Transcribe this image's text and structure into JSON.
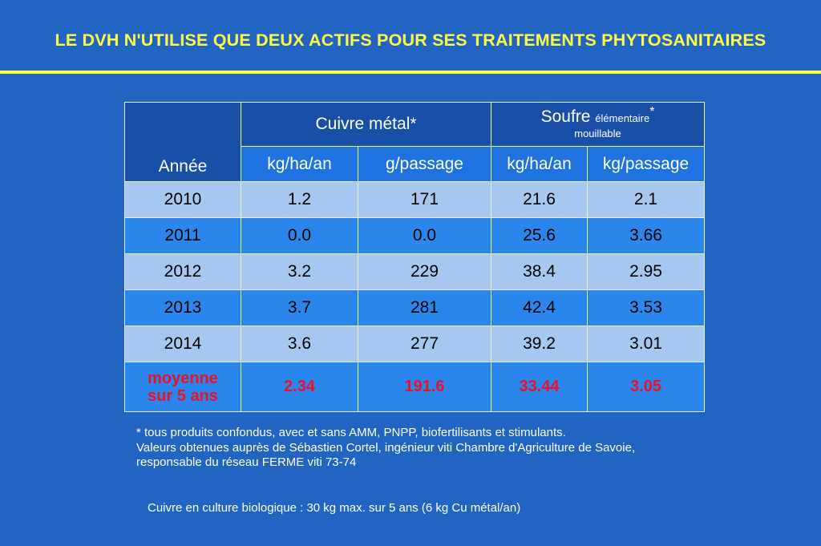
{
  "title": "LE DVH N'UTILISE QUE DEUX ACTIFS POUR SES TRAITEMENTS PHYTOSANITAIRES",
  "colors": {
    "background": "#2164c2",
    "title": "#ffff44",
    "highlight": "#e8102a"
  },
  "table": {
    "year_header": "Année",
    "copper_header": "Cuivre métal*",
    "sulfur_header_main": "Soufre",
    "sulfur_header_small": "élémentaire",
    "sulfur_header_star": "*",
    "sulfur_header_sub": "mouillable",
    "units": [
      "kg/ha/an",
      "g/passage",
      "kg/ha/an",
      "kg/passage"
    ],
    "rows": [
      {
        "year": "2010",
        "values": [
          "1.2",
          "171",
          "21.6",
          "2.1"
        ]
      },
      {
        "year": "2011",
        "values": [
          "0.0",
          "0.0",
          "25.6",
          "3.66"
        ]
      },
      {
        "year": "2012",
        "values": [
          "3.2",
          "229",
          "38.4",
          "2.95"
        ]
      },
      {
        "year": "2013",
        "values": [
          "3.7",
          "281",
          "42.4",
          "3.53"
        ]
      },
      {
        "year": "2014",
        "values": [
          "3.6",
          "277",
          "39.2",
          "3.01"
        ]
      }
    ],
    "average": {
      "label_line1": "moyenne",
      "label_line2": "sur 5 ans",
      "values": [
        "2.34",
        "191.6",
        "33.44",
        "3.05"
      ]
    }
  },
  "notes": [
    "* tous produits confondus, avec et sans AMM, PNPP, biofertilisants et stimulants.",
    "Valeurs obtenues auprès de Sébastien Cortel, ingénieur viti Chambre d'Agriculture de Savoie,",
    "responsable du réseau FERME viti 73-74"
  ],
  "bio_note": "Cuivre en culture biologique : 30 kg max. sur 5 ans (6 kg Cu métal/an)"
}
